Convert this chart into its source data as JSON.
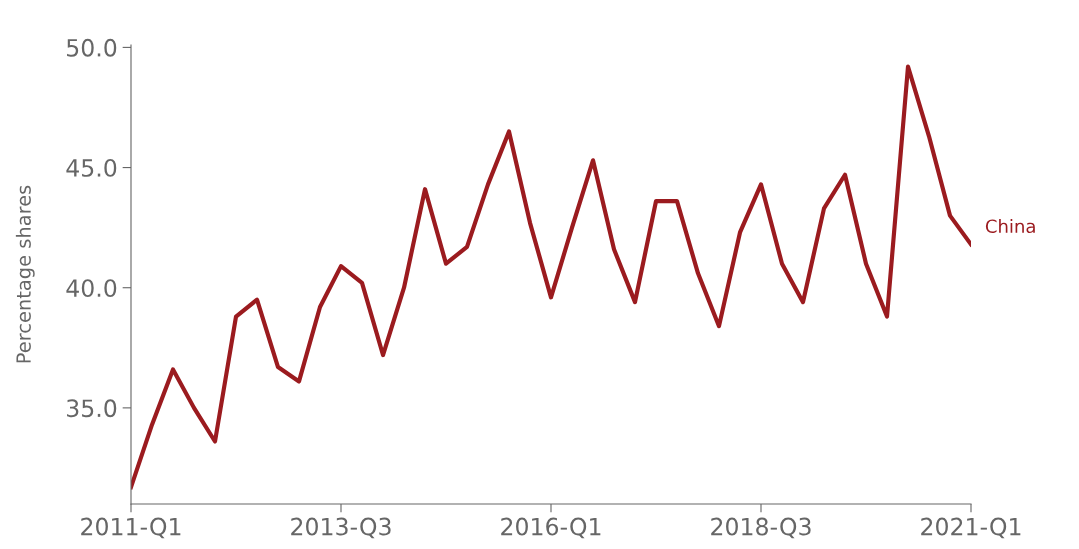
{
  "chart_data": {
    "type": "line",
    "ylabel": "Percentage shares",
    "categories": [
      "2011-Q1",
      null,
      null,
      null,
      null,
      null,
      null,
      null,
      null,
      null,
      "2013-Q3",
      null,
      null,
      null,
      null,
      null,
      null,
      null,
      null,
      null,
      "2016-Q1",
      null,
      null,
      null,
      null,
      null,
      null,
      null,
      null,
      null,
      "2018-Q3",
      null,
      null,
      null,
      null,
      null,
      null,
      null,
      null,
      null,
      "2021-Q1"
    ],
    "series": [
      {
        "name": "China",
        "color": "#9b1b1f",
        "values": [
          31.7,
          34.3,
          36.6,
          35.0,
          33.6,
          38.8,
          39.5,
          36.7,
          36.1,
          39.2,
          40.9,
          40.2,
          37.2,
          40.0,
          44.1,
          41.0,
          41.7,
          44.3,
          46.5,
          42.7,
          39.6,
          42.5,
          45.3,
          41.6,
          39.4,
          43.6,
          43.6,
          40.6,
          38.4,
          42.3,
          44.3,
          41.0,
          39.4,
          43.3,
          44.7,
          41.0,
          38.8,
          49.2,
          46.3,
          43.0,
          41.8
        ]
      }
    ],
    "ylim": [
      31.0,
      50.1
    ],
    "yticks": [
      {
        "value": 35,
        "label": "35.0"
      },
      {
        "value": 40,
        "label": "40.0"
      },
      {
        "value": 45,
        "label": "45.0"
      },
      {
        "value": 50,
        "label": "50.0"
      }
    ],
    "grid": false,
    "legend": false,
    "marker": "none",
    "line_style": "solid"
  }
}
